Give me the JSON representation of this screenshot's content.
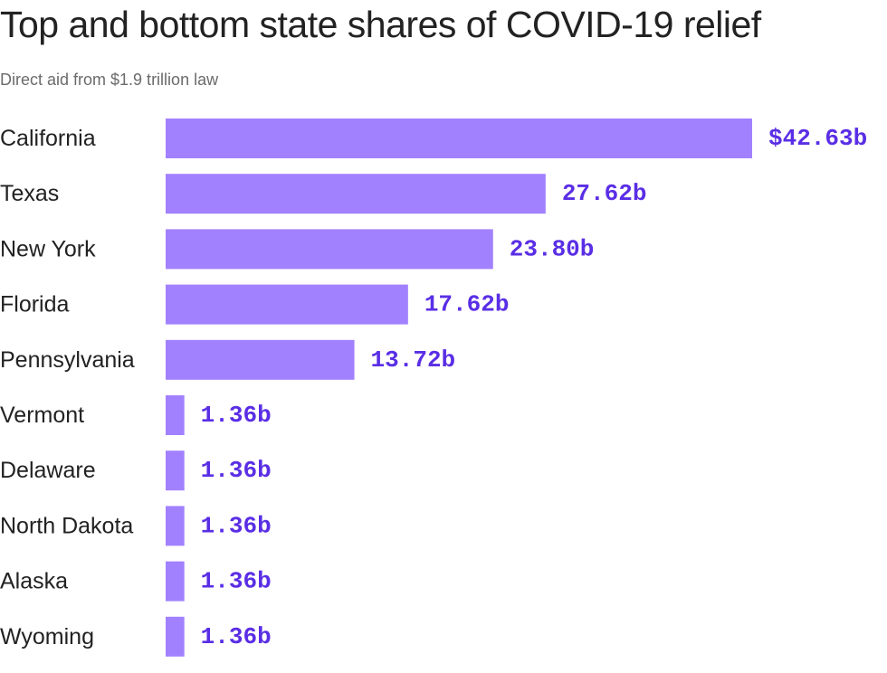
{
  "chart_data": {
    "type": "bar",
    "orientation": "horizontal",
    "title": "Top and bottom state shares of COVID-19 relief",
    "subtitle": "Direct aid from $1.9 trillion law",
    "categories": [
      "California",
      "Texas",
      "New York",
      "Florida",
      "Pennsylvania",
      "Vermont",
      "Delaware",
      "North Dakota",
      "Alaska",
      "Wyoming"
    ],
    "values": [
      42.63,
      27.62,
      23.8,
      17.62,
      13.72,
      1.36,
      1.36,
      1.36,
      1.36,
      1.36
    ],
    "value_labels": [
      "$42.63b",
      "27.62b",
      "23.80b",
      "17.62b",
      "13.72b",
      "1.36b",
      "1.36b",
      "1.36b",
      "1.36b",
      "1.36b"
    ],
    "unit": "billion USD",
    "grid": false,
    "legend": "none",
    "colors": {
      "bar": "#a281fe",
      "value_text": "#5a2ee5"
    }
  }
}
